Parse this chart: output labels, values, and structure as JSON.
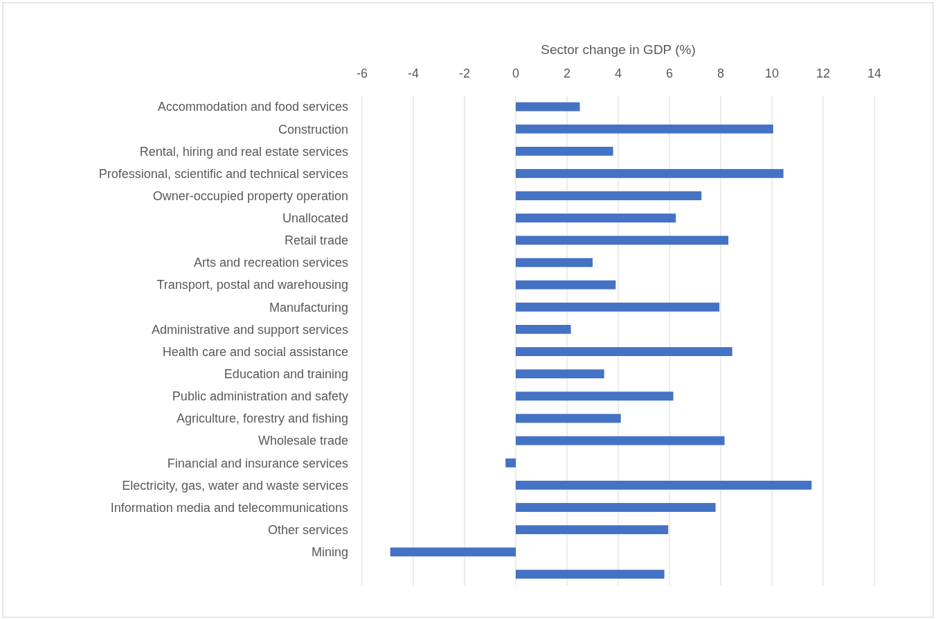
{
  "chart_data": {
    "type": "bar",
    "orientation": "horizontal",
    "xlabel": "Sector change in GDP (%)",
    "categories": [
      "Accommodation and food services",
      "Construction",
      "Rental, hiring and real estate services",
      "Professional, scientific and technical services",
      "Owner-occupied property operation",
      "Unallocated",
      "Retail trade",
      "Arts and recreation services",
      "Transport, postal and warehousing",
      "Manufacturing",
      "Administrative and support services",
      "Health care and social assistance",
      "Education and training",
      "Public administration and safety",
      "Agriculture, forestry and fishing",
      "Wholesale trade",
      "Financial and insurance services",
      "Electricity, gas, water and waste services",
      "Information media and telecommunications",
      "Other services",
      "Mining",
      null
    ],
    "values": [
      2.5,
      10.05,
      3.8,
      10.45,
      7.25,
      6.25,
      8.3,
      3.0,
      3.9,
      7.95,
      2.15,
      8.45,
      3.45,
      6.15,
      4.1,
      8.15,
      -0.4,
      11.55,
      7.8,
      5.95,
      -4.9,
      5.8
    ],
    "color": "#4472c4",
    "xlim": [
      -6,
      14
    ],
    "xticks": [
      -6,
      -4,
      -2,
      0,
      2,
      4,
      6,
      8,
      10,
      12,
      14
    ],
    "grid": "x"
  }
}
